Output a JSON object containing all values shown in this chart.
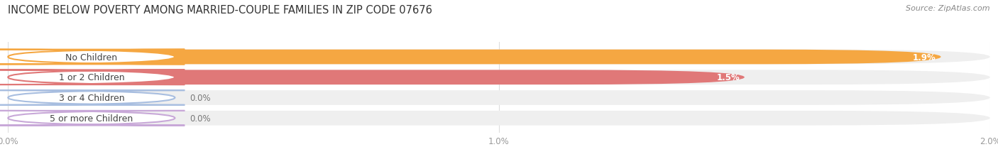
{
  "title": "INCOME BELOW POVERTY AMONG MARRIED-COUPLE FAMILIES IN ZIP CODE 07676",
  "source": "Source: ZipAtlas.com",
  "categories": [
    "No Children",
    "1 or 2 Children",
    "3 or 4 Children",
    "5 or more Children"
  ],
  "values": [
    1.9,
    1.5,
    0.0,
    0.0
  ],
  "bar_colors": [
    "#F5A742",
    "#E07878",
    "#A8BEE0",
    "#C8A8D8"
  ],
  "xlim": [
    0,
    2.0
  ],
  "xticks": [
    0.0,
    1.0,
    2.0
  ],
  "xtick_labels": [
    "0.0%",
    "1.0%",
    "2.0%"
  ],
  "title_fontsize": 10.5,
  "source_fontsize": 8,
  "bar_label_fontsize": 8.5,
  "category_fontsize": 9,
  "background_color": "#FFFFFF",
  "bar_height": 0.72,
  "bubble_bg": "#FFFFFF",
  "bar_bg_color": "#EFEFEF",
  "grid_color": "#DDDDDD",
  "label_text_color": "#FFFFFF",
  "axis_label_color": "#999999"
}
